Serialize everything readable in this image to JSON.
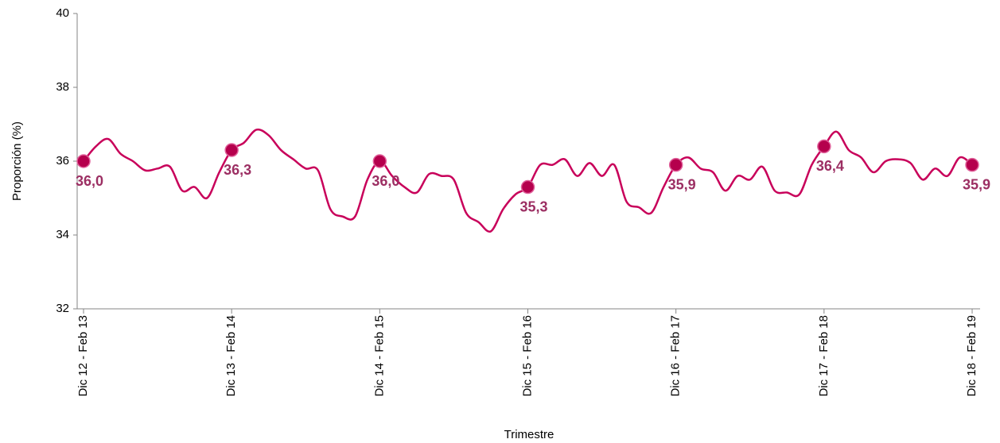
{
  "chart_data": {
    "type": "line",
    "y_label": "Proporción  (%)",
    "x_label": "Trimestre",
    "categories": [
      "Dic 12 - Feb 13",
      null,
      null,
      null,
      null,
      null,
      null,
      null,
      null,
      null,
      null,
      null,
      "Dic 13 - Feb 14",
      null,
      null,
      null,
      null,
      null,
      null,
      null,
      null,
      null,
      null,
      null,
      "Dic 14 - Feb 15",
      null,
      null,
      null,
      null,
      null,
      null,
      null,
      null,
      null,
      null,
      null,
      "Dic 15 - Feb 16",
      null,
      null,
      null,
      null,
      null,
      null,
      null,
      null,
      null,
      null,
      null,
      "Dic 16 - Feb 17",
      null,
      null,
      null,
      null,
      null,
      null,
      null,
      null,
      null,
      null,
      null,
      "Dic 17 - Feb 18",
      null,
      null,
      null,
      null,
      null,
      null,
      null,
      null,
      null,
      null,
      null,
      "Dic 18 - Feb 19"
    ],
    "series": [
      {
        "name": "Proporción",
        "color": "#c8005a",
        "marker_color": "#b5004d",
        "marker_edge": "#e0609a",
        "values": [
          36.0,
          36.4,
          36.6,
          36.2,
          36.0,
          35.75,
          35.8,
          35.85,
          35.2,
          35.3,
          35.0,
          35.7,
          36.3,
          36.5,
          36.85,
          36.7,
          36.3,
          36.05,
          35.8,
          35.75,
          34.7,
          34.5,
          34.5,
          35.5,
          36.0,
          35.6,
          35.3,
          35.15,
          35.65,
          35.6,
          35.5,
          34.6,
          34.35,
          34.1,
          34.7,
          35.1,
          35.3,
          35.9,
          35.9,
          36.05,
          35.6,
          35.95,
          35.6,
          35.9,
          34.9,
          34.75,
          34.6,
          35.3,
          35.9,
          36.1,
          35.8,
          35.7,
          35.2,
          35.6,
          35.5,
          35.85,
          35.2,
          35.15,
          35.1,
          35.9,
          36.4,
          36.8,
          36.3,
          36.1,
          35.7,
          36.0,
          36.05,
          35.95,
          35.5,
          35.8,
          35.6,
          36.1,
          35.9
        ],
        "value_labels": [
          "36,0",
          null,
          null,
          null,
          null,
          null,
          null,
          null,
          null,
          null,
          null,
          null,
          "36,3",
          null,
          null,
          null,
          null,
          null,
          null,
          null,
          null,
          null,
          null,
          null,
          "36,0",
          null,
          null,
          null,
          null,
          null,
          null,
          null,
          null,
          null,
          null,
          null,
          "35,3",
          null,
          null,
          null,
          null,
          null,
          null,
          null,
          null,
          null,
          null,
          null,
          "35,9",
          null,
          null,
          null,
          null,
          null,
          null,
          null,
          null,
          null,
          null,
          null,
          "36,4",
          null,
          null,
          null,
          null,
          null,
          null,
          null,
          null,
          null,
          null,
          null,
          "35,9"
        ]
      }
    ],
    "ylim": [
      32,
      40
    ],
    "yticks": [
      32,
      34,
      36,
      38,
      40
    ],
    "grid": false
  }
}
